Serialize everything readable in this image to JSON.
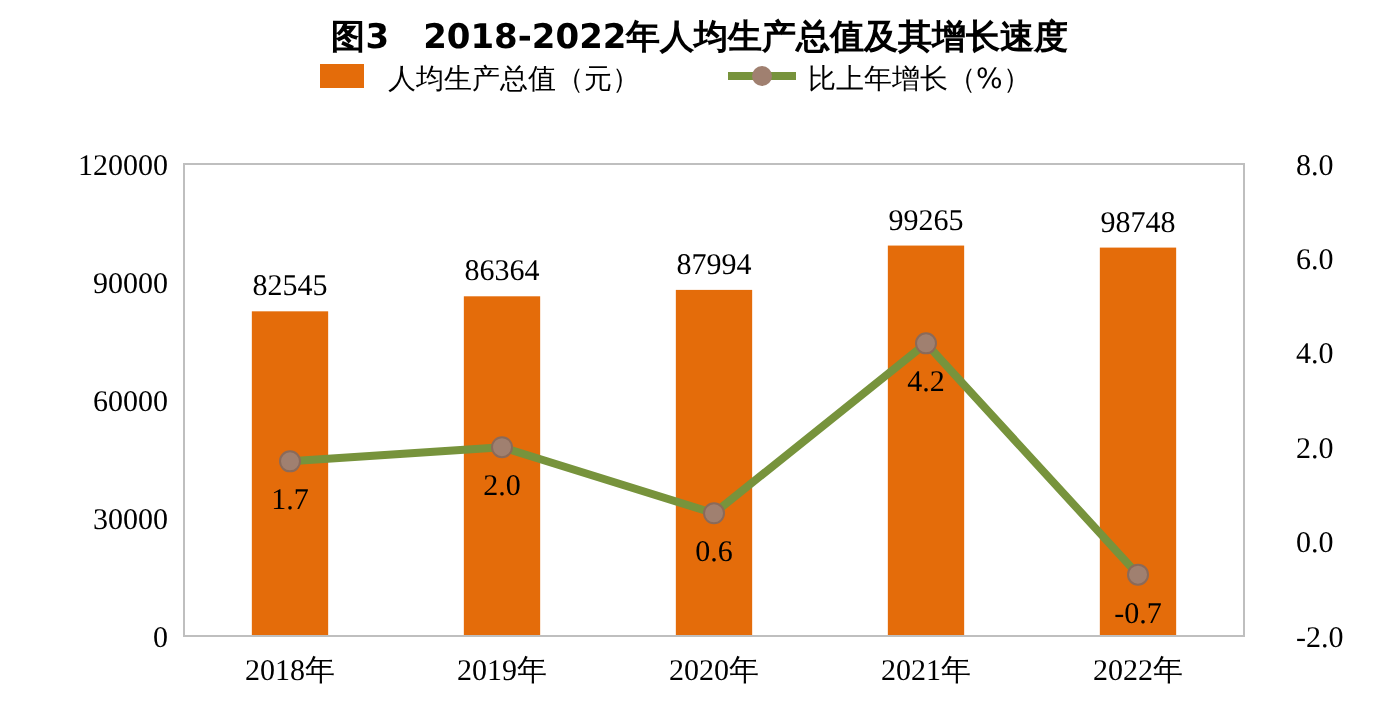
{
  "chart_data": {
    "type": "bar",
    "title": "图3　2018-2022年人均生产总值及其增长速度",
    "categories": [
      "2018年",
      "2019年",
      "2020年",
      "2021年",
      "2022年"
    ],
    "series": [
      {
        "name": "人均生产总值（元）",
        "color": "#e46c0a",
        "values": [
          82545,
          86364,
          87994,
          99265,
          98748
        ]
      },
      {
        "name": "比上年增长（%）",
        "type": "line",
        "axis": "y2",
        "color": "#77933c",
        "marker": "circle",
        "values": [
          1.7,
          2.0,
          0.6,
          4.2,
          -0.7
        ],
        "value_labels": [
          "1.7",
          "2.0",
          "0.6",
          "4.2",
          "-0.7"
        ]
      }
    ],
    "ylim": [
      0,
      120000
    ],
    "yticks": [
      0,
      30000,
      60000,
      90000,
      120000
    ],
    "y2lim": [
      -2,
      8
    ],
    "y2ticks": [
      {
        "value": -2,
        "label": "-2.0"
      },
      {
        "value": 0,
        "label": "0.0"
      },
      {
        "value": 2,
        "label": "2.0"
      },
      {
        "value": 4,
        "label": "4.0"
      },
      {
        "value": 6,
        "label": "6.0"
      },
      {
        "value": 8,
        "label": "8.0"
      }
    ],
    "data_labels": true,
    "legend": "top",
    "grid": false
  }
}
